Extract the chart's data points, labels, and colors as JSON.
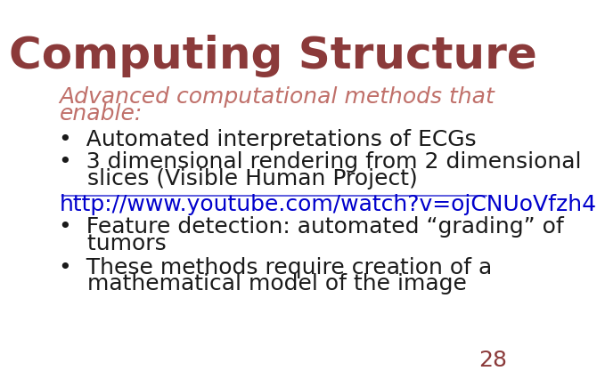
{
  "title": "Computing Structure",
  "title_color": "#8B3A3A",
  "title_fontsize": 36,
  "subtitle_line1": "Advanced computational methods that",
  "subtitle_line2": "enable:",
  "subtitle_color": "#C0706A",
  "subtitle_fontsize": 18,
  "bullet_color": "#1a1a1a",
  "bullet_fontsize": 18,
  "bullet1": "Automated interpretations of ECGs",
  "bullet2_line1": "3 dimensional rendering from 2 dimensional",
  "bullet2_line2": "    slices (Visible Human Project)",
  "link": "http://www.youtube.com/watch?v=ojCNUoVfzh4",
  "link_color": "#0000CC",
  "link_fontsize": 18,
  "bullet3_line1": "Feature detection: automated “grading” of",
  "bullet3_line2": "    tumors",
  "bullet4_line1": "These methods require creation of a",
  "bullet4_line2": "    mathematical model of the image",
  "page_number": "28",
  "page_color": "#8B3A3A",
  "page_fontsize": 18,
  "background_color": "#ffffff"
}
